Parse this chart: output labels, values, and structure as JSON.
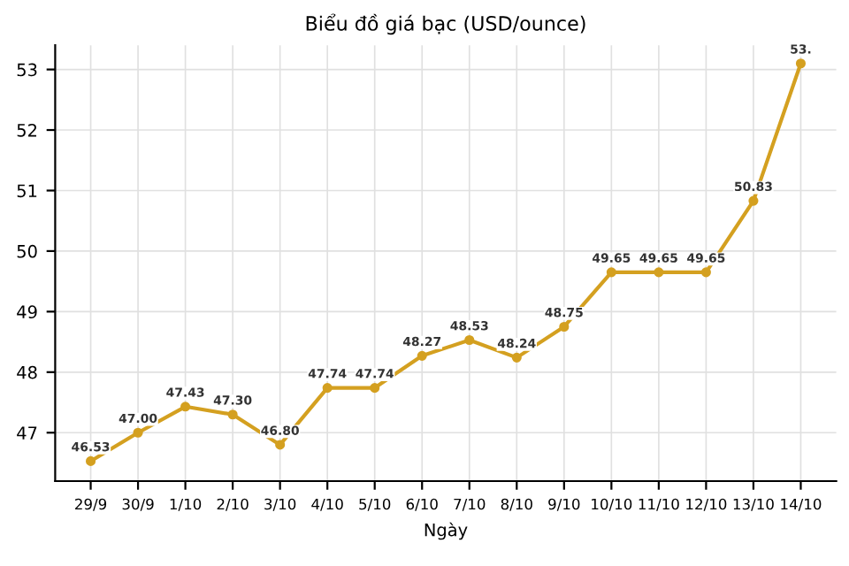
{
  "chart_data": {
    "type": "line",
    "title": "Biểu đồ giá bạc (USD/ounce)",
    "xlabel": "Ngày",
    "categories": [
      "29/9",
      "30/9",
      "1/10",
      "2/10",
      "3/10",
      "4/10",
      "5/10",
      "6/10",
      "7/10",
      "8/10",
      "9/10",
      "10/10",
      "11/10",
      "12/10",
      "13/10",
      "14/10"
    ],
    "series": [
      {
        "color": "#d4a020",
        "values": [
          46.53,
          47.0,
          47.43,
          47.3,
          46.8,
          47.74,
          47.74,
          48.27,
          48.53,
          48.24,
          48.75,
          49.65,
          49.65,
          49.65,
          50.83,
          53.1
        ],
        "value_labels": [
          "46.53",
          "47.00",
          "47.43",
          "47.30",
          "46.80",
          "47.74",
          "47.74",
          "48.27",
          "48.53",
          "48.24",
          "48.75",
          "49.65",
          "49.65",
          "49.65",
          "50.83",
          "53."
        ]
      }
    ],
    "ylim": [
      46.2,
      53.4
    ],
    "yticks": [
      47,
      48,
      49,
      50,
      51,
      52,
      53
    ],
    "grid": true,
    "marker": "circle",
    "line_style": "solid"
  }
}
